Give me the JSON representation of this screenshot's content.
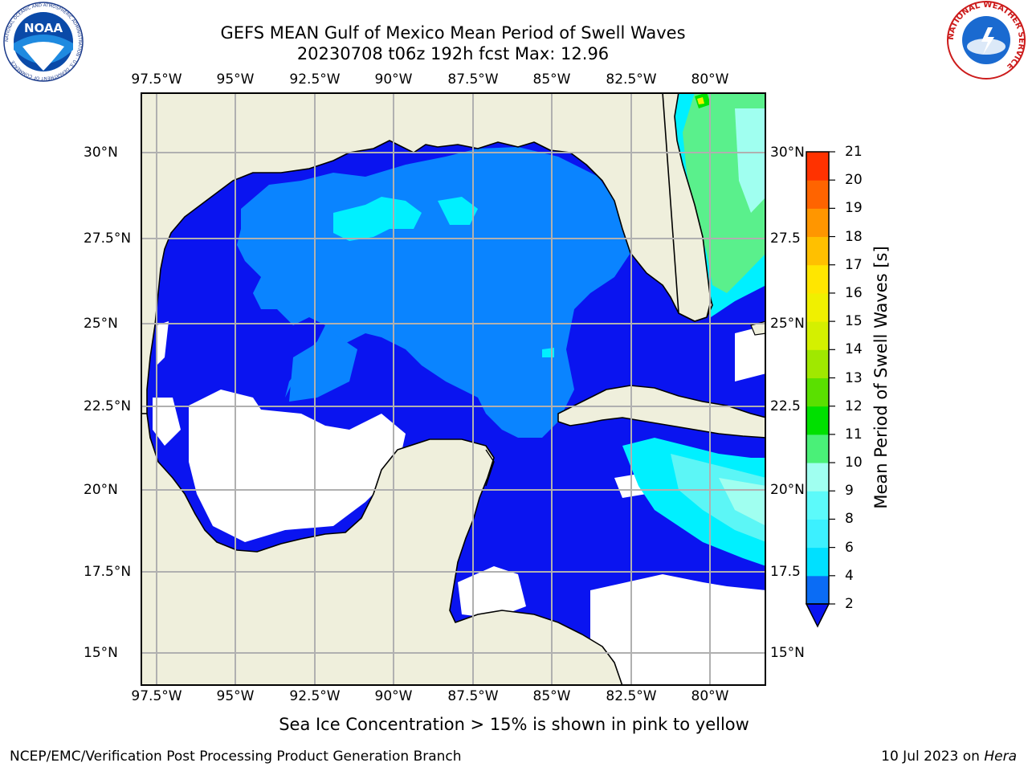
{
  "title": {
    "line1": "GEFS MEAN Gulf of Mexico Mean Period of Swell Waves",
    "line2": "20230708 t06z 192h fcst   Max: 12.96"
  },
  "axes": {
    "lon_labels": [
      "97.5°W",
      "95°W",
      "92.5°W",
      "90°W",
      "87.5°W",
      "85°W",
      "82.5°W",
      "80°W"
    ],
    "lat_labels_left": [
      "30°N",
      "27.5°N",
      "25°N",
      "22.5°N",
      "20°N",
      "17.5°N",
      "15°N"
    ],
    "lat_labels_right": [
      "30°N",
      "27.5",
      "25°N",
      "22.5",
      "20°N",
      "17.5",
      "15°N"
    ]
  },
  "colorbar": {
    "label": "Mean Period of Swell Waves [s]",
    "ticks": [
      "2",
      "4",
      "6",
      "8",
      "9",
      "10",
      "11",
      "12",
      "13",
      "14",
      "15",
      "16",
      "17",
      "18",
      "19",
      "20",
      "21"
    ],
    "colors": [
      "#0a6cf5",
      "#00e0ff",
      "#3cf0ff",
      "#5cfafa",
      "#a0fff0",
      "#4af078",
      "#00e000",
      "#5ae000",
      "#a0e800",
      "#d4f000",
      "#f0f000",
      "#ffe600",
      "#ffc000",
      "#ff9600",
      "#ff6400",
      "#ff3200",
      "#ff0000"
    ]
  },
  "note": "Sea Ice Concentration > 15% is shown in pink to yellow",
  "footer": {
    "left": "NCEP/EMC/Verification Post Processing Product Generation Branch",
    "right_prefix": "10 Jul 2023 on ",
    "right_italic": "Hera"
  },
  "logos": {
    "noaa_text": "NOAA",
    "noaa_ring": "NATIONAL OCEANIC AND ATMOSPHERIC ADMINISTRATION · U.S. DEPARTMENT OF COMMERCE",
    "nws_ring": "NATIONAL WEATHER SERVICE"
  },
  "map_colors": {
    "land": "#efefdc",
    "deep_blue": "#0a14f0",
    "mid_blue": "#0a84ff",
    "cyan": "#00f0ff",
    "light_cyan": "#5cf6f6",
    "green": "#5af08c",
    "bright_green": "#00e000",
    "white": "#ffffff",
    "grid": "#b0b0b0"
  }
}
